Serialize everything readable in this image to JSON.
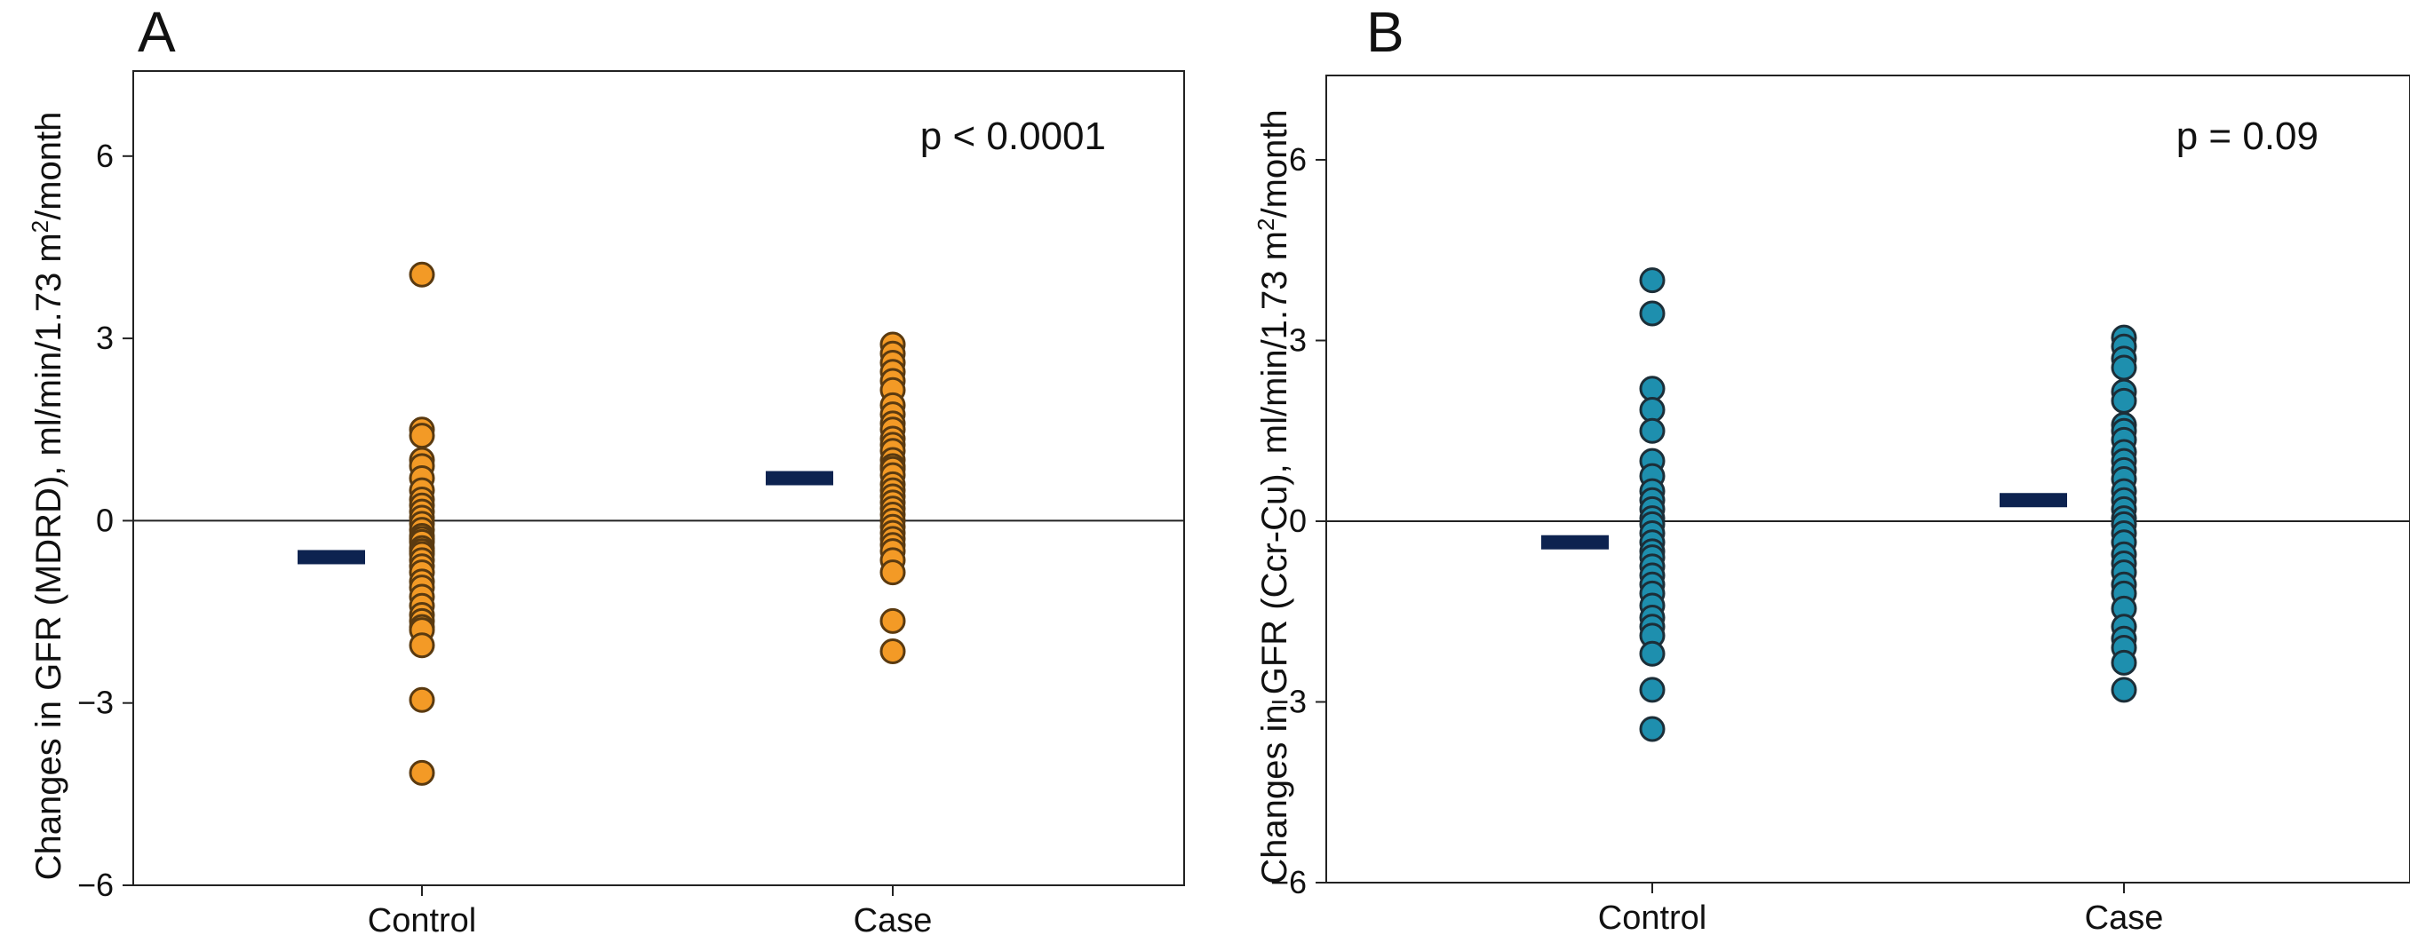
{
  "chart_data": [
    {
      "panel": "A",
      "type": "scatter",
      "ylabel": "Changes in GFR (MDRD), ml/min/1.73 m",
      "ylabel_sup": "2",
      "ylabel_suffix": "/month",
      "xlabel": "",
      "annotation": "p < 0.0001",
      "categories": [
        "Control",
        "Case"
      ],
      "ylim": [
        -6,
        7.4
      ],
      "yticks": [
        -6,
        -3,
        0,
        3,
        6
      ],
      "ytick_labels": [
        "−6",
        "−3",
        "0",
        "3",
        "6"
      ],
      "reference_line": 0,
      "grid": false,
      "point_color": "#F39A26",
      "point_stroke": "#5a3a10",
      "mean_color": "#0D2350",
      "means": [
        -0.6,
        0.7
      ],
      "series": [
        {
          "category": "Control",
          "values": [
            4.05,
            1.5,
            1.4,
            1.0,
            0.9,
            0.7,
            0.5,
            0.35,
            0.25,
            0.15,
            0.05,
            -0.05,
            -0.15,
            -0.25,
            -0.3,
            -0.35,
            -0.45,
            -0.5,
            -0.55,
            -0.65,
            -0.75,
            -0.85,
            -1.0,
            -1.1,
            -1.25,
            -1.4,
            -1.55,
            -1.65,
            -1.75,
            -1.8,
            -2.05,
            -2.95,
            -4.15
          ]
        },
        {
          "category": "Case",
          "values": [
            2.9,
            2.75,
            2.6,
            2.45,
            2.3,
            2.15,
            1.9,
            1.75,
            1.6,
            1.5,
            1.35,
            1.25,
            1.15,
            1.0,
            0.9,
            0.85,
            0.75,
            0.6,
            0.5,
            0.4,
            0.3,
            0.2,
            0.1,
            0.0,
            -0.1,
            -0.2,
            -0.3,
            -0.4,
            -0.5,
            -0.65,
            -0.85,
            -1.65,
            -2.15
          ]
        }
      ]
    },
    {
      "panel": "B",
      "type": "scatter",
      "ylabel": "Changes in GFR (Ccr-Cu), ml/min/1.73 m",
      "ylabel_sup": "2",
      "ylabel_suffix": "/month",
      "xlabel": "",
      "annotation": "p = 0.09",
      "categories": [
        "Control",
        "Case"
      ],
      "ylim": [
        -6,
        7.4
      ],
      "yticks": [
        -6,
        -3,
        0,
        3,
        6
      ],
      "ytick_labels": [
        "−6",
        "−3",
        "0",
        "3",
        "6"
      ],
      "reference_line": 0,
      "grid": false,
      "point_color": "#1E8FAE",
      "point_stroke": "#1c2e38",
      "mean_color": "#0D2350",
      "means": [
        -0.35,
        0.35
      ],
      "series": [
        {
          "category": "Control",
          "values": [
            4.0,
            3.45,
            2.2,
            1.85,
            1.5,
            1.0,
            0.75,
            0.5,
            0.35,
            0.2,
            0.05,
            -0.05,
            -0.2,
            -0.35,
            -0.5,
            -0.6,
            -0.75,
            -0.9,
            -1.05,
            -1.2,
            -1.4,
            -1.6,
            -1.75,
            -1.9,
            -2.2,
            -2.8,
            -3.45
          ]
        },
        {
          "category": "Case",
          "values": [
            3.05,
            2.9,
            2.7,
            2.55,
            2.15,
            2.0,
            1.6,
            1.5,
            1.35,
            1.15,
            1.0,
            0.85,
            0.7,
            0.5,
            0.35,
            0.2,
            0.05,
            -0.05,
            -0.2,
            -0.35,
            -0.55,
            -0.7,
            -0.85,
            -1.05,
            -1.2,
            -1.45,
            -1.75,
            -1.95,
            -2.1,
            -2.35,
            -2.8
          ]
        }
      ]
    }
  ]
}
